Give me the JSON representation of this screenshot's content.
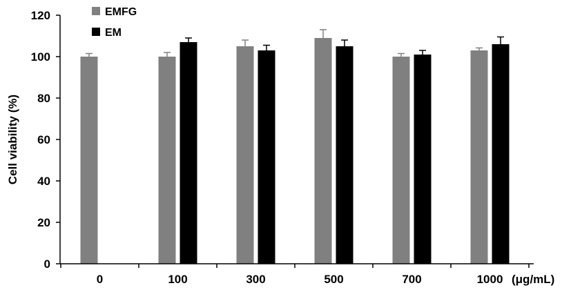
{
  "chart_data": {
    "type": "bar",
    "title": "",
    "xlabel": "",
    "ylabel": "Cell viability (%)",
    "x_unit": "(μg/mL)",
    "categories": [
      "0",
      "100",
      "300",
      "500",
      "700",
      "1000"
    ],
    "ylim": [
      0,
      120
    ],
    "yticks": [
      0,
      20,
      40,
      60,
      80,
      100,
      120
    ],
    "grid": false,
    "legend_position": "top-left",
    "series": [
      {
        "name": "EMFG",
        "color": "#808080",
        "values": [
          100,
          100,
          105,
          109,
          100,
          103
        ],
        "errors": [
          1.5,
          2,
          3,
          4,
          1.5,
          1.2
        ]
      },
      {
        "name": "EM",
        "color": "#000000",
        "values": [
          null,
          107,
          103,
          105,
          101,
          106
        ],
        "errors": [
          null,
          2,
          2.5,
          3,
          2,
          3.5
        ]
      }
    ]
  }
}
